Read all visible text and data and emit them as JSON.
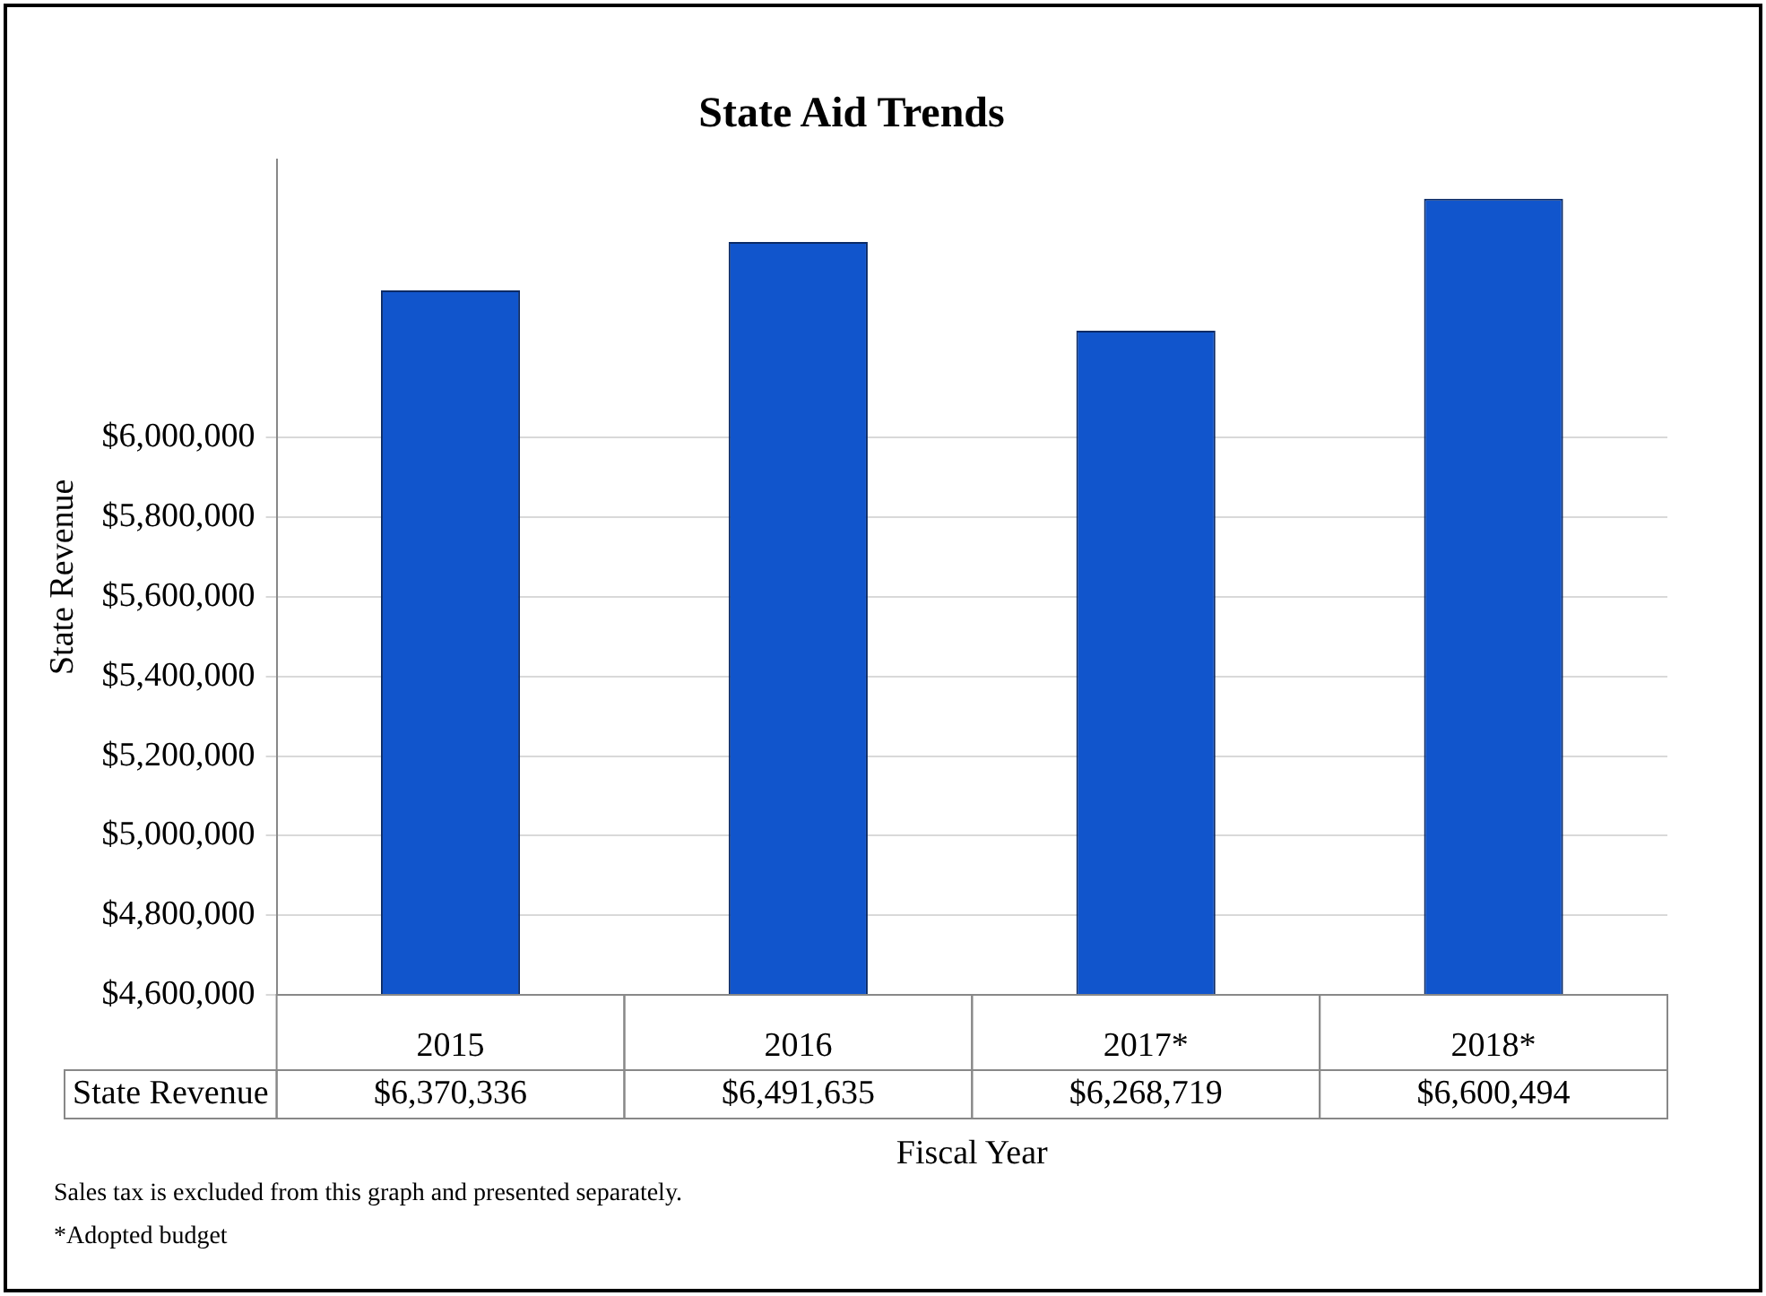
{
  "chart_data": {
    "type": "bar",
    "title": "State Aid Trends",
    "xlabel": "Fiscal Year",
    "ylabel": "State Revenue",
    "categories": [
      "2015",
      "2016",
      "2017*",
      "2018*"
    ],
    "series": [
      {
        "name": "State Revenue",
        "color": "#1155cc",
        "values": [
          6370336,
          6491635,
          6268719,
          6600494
        ],
        "value_labels": [
          "$6,370,336",
          "$6,491,635",
          "$6,268,719",
          "$6,600,494"
        ]
      }
    ],
    "ylim": [
      4600000,
      6700000
    ],
    "yticks": [
      {
        "value": 4600000,
        "label": "$4,600,000"
      },
      {
        "value": 4800000,
        "label": "$4,800,000"
      },
      {
        "value": 5000000,
        "label": "$5,000,000"
      },
      {
        "value": 5200000,
        "label": "$5,200,000"
      },
      {
        "value": 5400000,
        "label": "$5,400,000"
      },
      {
        "value": 5600000,
        "label": "$5,600,000"
      },
      {
        "value": 5800000,
        "label": "$5,800,000"
      },
      {
        "value": 6000000,
        "label": "$6,000,000"
      }
    ],
    "grid": "y",
    "legend": false,
    "annotations": [
      "Sales tax is excluded from this graph and presented separately.",
      "*Adopted budget"
    ]
  }
}
